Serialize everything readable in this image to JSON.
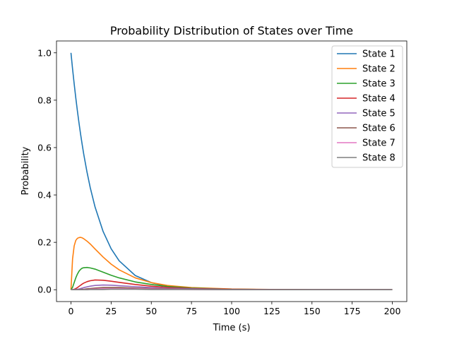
{
  "chart_data": {
    "type": "line",
    "title": "Probability Distribution of States over Time",
    "xlabel": "Time (s)",
    "ylabel": "Probability",
    "xlim": [
      -9,
      209
    ],
    "ylim": [
      -0.05,
      1.05
    ],
    "xticks": [
      0,
      25,
      50,
      75,
      100,
      125,
      150,
      175,
      200
    ],
    "xtick_labels": [
      "0",
      "25",
      "50",
      "75",
      "100",
      "125",
      "150",
      "175",
      "200"
    ],
    "yticks": [
      0.0,
      0.2,
      0.4,
      0.6,
      0.8,
      1.0
    ],
    "ytick_labels": [
      "0.0",
      "0.2",
      "0.4",
      "0.6",
      "0.8",
      "1.0"
    ],
    "grid": false,
    "legend_position": "top-right",
    "x": [
      0,
      1,
      2,
      3,
      4,
      5,
      6,
      7,
      8,
      10,
      12,
      15,
      20,
      25,
      30,
      40,
      50,
      60,
      75,
      100,
      125,
      150,
      175,
      200
    ],
    "series": [
      {
        "name": "State 1",
        "color": "#1f77b4",
        "values": [
          1.0,
          0.932,
          0.869,
          0.81,
          0.755,
          0.704,
          0.656,
          0.612,
          0.57,
          0.496,
          0.431,
          0.349,
          0.246,
          0.173,
          0.122,
          0.06,
          0.03,
          0.015,
          0.005,
          0.001,
          0.0,
          0.0,
          0.0,
          0.0
        ]
      },
      {
        "name": "State 2",
        "color": "#ff7f0e",
        "values": [
          0.0,
          0.13,
          0.185,
          0.208,
          0.217,
          0.22,
          0.221,
          0.219,
          0.215,
          0.205,
          0.193,
          0.172,
          0.138,
          0.108,
          0.084,
          0.05,
          0.03,
          0.018,
          0.009,
          0.003,
          0.001,
          0.0,
          0.0,
          0.0
        ]
      },
      {
        "name": "State 3",
        "color": "#2ca02c",
        "values": [
          0.0,
          0.01,
          0.03,
          0.05,
          0.066,
          0.078,
          0.086,
          0.091,
          0.093,
          0.094,
          0.092,
          0.087,
          0.074,
          0.061,
          0.05,
          0.033,
          0.022,
          0.014,
          0.007,
          0.002,
          0.001,
          0.0,
          0.0,
          0.0
        ]
      },
      {
        "name": "State 4",
        "color": "#d62728",
        "values": [
          0.0,
          0.0,
          0.002,
          0.005,
          0.009,
          0.014,
          0.019,
          0.024,
          0.028,
          0.034,
          0.038,
          0.041,
          0.04,
          0.036,
          0.031,
          0.022,
          0.015,
          0.01,
          0.005,
          0.002,
          0.001,
          0.0,
          0.0,
          0.0
        ]
      },
      {
        "name": "State 5",
        "color": "#9467bd",
        "values": [
          0.0,
          0.0,
          0.0,
          0.001,
          0.002,
          0.003,
          0.005,
          0.007,
          0.009,
          0.012,
          0.015,
          0.018,
          0.02,
          0.019,
          0.017,
          0.013,
          0.009,
          0.006,
          0.004,
          0.001,
          0.0,
          0.0,
          0.0,
          0.0
        ]
      },
      {
        "name": "State 6",
        "color": "#8c564b",
        "values": [
          0.0,
          0.0,
          0.0,
          0.0,
          0.0,
          0.001,
          0.001,
          0.002,
          0.002,
          0.004,
          0.005,
          0.007,
          0.009,
          0.009,
          0.009,
          0.007,
          0.005,
          0.004,
          0.002,
          0.001,
          0.0,
          0.0,
          0.0,
          0.0
        ]
      },
      {
        "name": "State 7",
        "color": "#e377c2",
        "values": [
          0.0,
          0.0,
          0.0,
          0.0,
          0.0,
          0.0,
          0.0,
          0.0,
          0.001,
          0.001,
          0.002,
          0.003,
          0.004,
          0.004,
          0.004,
          0.004,
          0.003,
          0.002,
          0.001,
          0.0,
          0.0,
          0.0,
          0.0,
          0.0
        ]
      },
      {
        "name": "State 8",
        "color": "#7f7f7f",
        "values": [
          0.0,
          0.0,
          0.0,
          0.0,
          0.0,
          0.0,
          0.0,
          0.0,
          0.0,
          0.0,
          0.001,
          0.001,
          0.001,
          0.002,
          0.002,
          0.002,
          0.001,
          0.001,
          0.001,
          0.0,
          0.0,
          0.0,
          0.0,
          0.0
        ]
      }
    ]
  }
}
